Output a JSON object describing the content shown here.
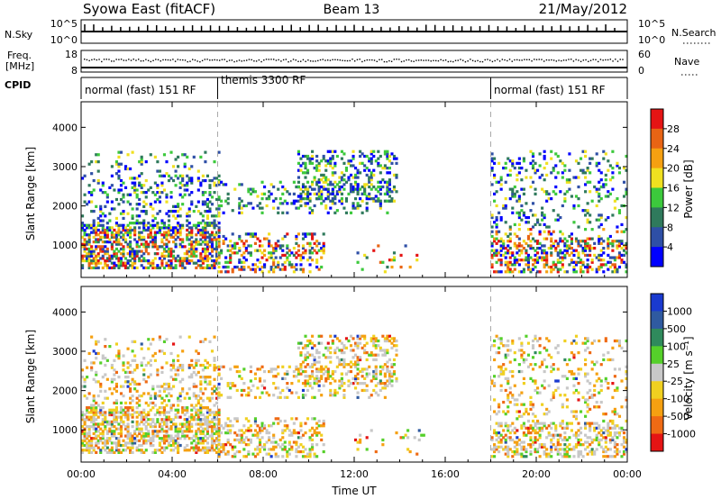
{
  "header": {
    "station": "Syowa East (fitACF)",
    "beam": "Beam 13",
    "date": "21/May/2012"
  },
  "panels": {
    "nsky": {
      "left_label": "N.Sky",
      "right_label": "N.Search",
      "left_ticks": [
        "10^5",
        "10^0"
      ],
      "right_ticks": [
        "10^5",
        "10^0"
      ]
    },
    "freq": {
      "left_label_1": "Freq.",
      "left_label_2": "[MHz]",
      "right_label": "Nave",
      "left_ticks": [
        "18",
        "8"
      ],
      "right_ticks": [
        "60",
        "0"
      ]
    },
    "cpid": {
      "label": "CPID",
      "segments": [
        {
          "text": "normal (fast) 151 RF",
          "start_h": 0,
          "end_h": 6
        },
        {
          "text": "themis 3300 RF",
          "start_h": 6,
          "end_h": 18
        },
        {
          "text": "normal (fast) 151 RF",
          "start_h": 18,
          "end_h": 24
        }
      ]
    }
  },
  "chart_data": [
    {
      "type": "heatmap",
      "ylabel": "Slant Range [km]",
      "xlabel": "Time UT",
      "xlim_hours": [
        0,
        24
      ],
      "ylim_km": [
        180,
        4650
      ],
      "yticks": [
        1000,
        2000,
        3000,
        4000
      ],
      "xticks": [
        "00:00",
        "04:00",
        "08:00",
        "12:00",
        "16:00",
        "20:00",
        "00:00"
      ],
      "colorbar": {
        "label": "Power [dB]",
        "ticks": [
          "4",
          "8",
          "12",
          "16",
          "20",
          "24",
          "28"
        ],
        "colors": [
          "#0000ff",
          "#2e4fa6",
          "#2f7a5c",
          "#3cc93c",
          "#f0e020",
          "#f5a011",
          "#e86414",
          "#e51414"
        ]
      }
    },
    {
      "type": "heatmap",
      "ylabel": "Slant Range [km]",
      "xlabel": "Time UT",
      "xlim_hours": [
        0,
        24
      ],
      "ylim_km": [
        180,
        4650
      ],
      "yticks": [
        1000,
        2000,
        3000,
        4000
      ],
      "xticks": [
        "00:00",
        "04:00",
        "08:00",
        "12:00",
        "16:00",
        "20:00",
        "00:00"
      ],
      "colorbar": {
        "label": "Velocity [m s⁻¹]",
        "ticks": [
          "1000",
          "500",
          "100",
          "25",
          "-25",
          "-100",
          "-500",
          "-1000"
        ],
        "colors": [
          "#1a3acf",
          "#2f5aa0",
          "#2f8a5c",
          "#55d02a",
          "#c8c8c8",
          "#f0d020",
          "#f5a011",
          "#ef6a14",
          "#e51414"
        ]
      }
    }
  ]
}
